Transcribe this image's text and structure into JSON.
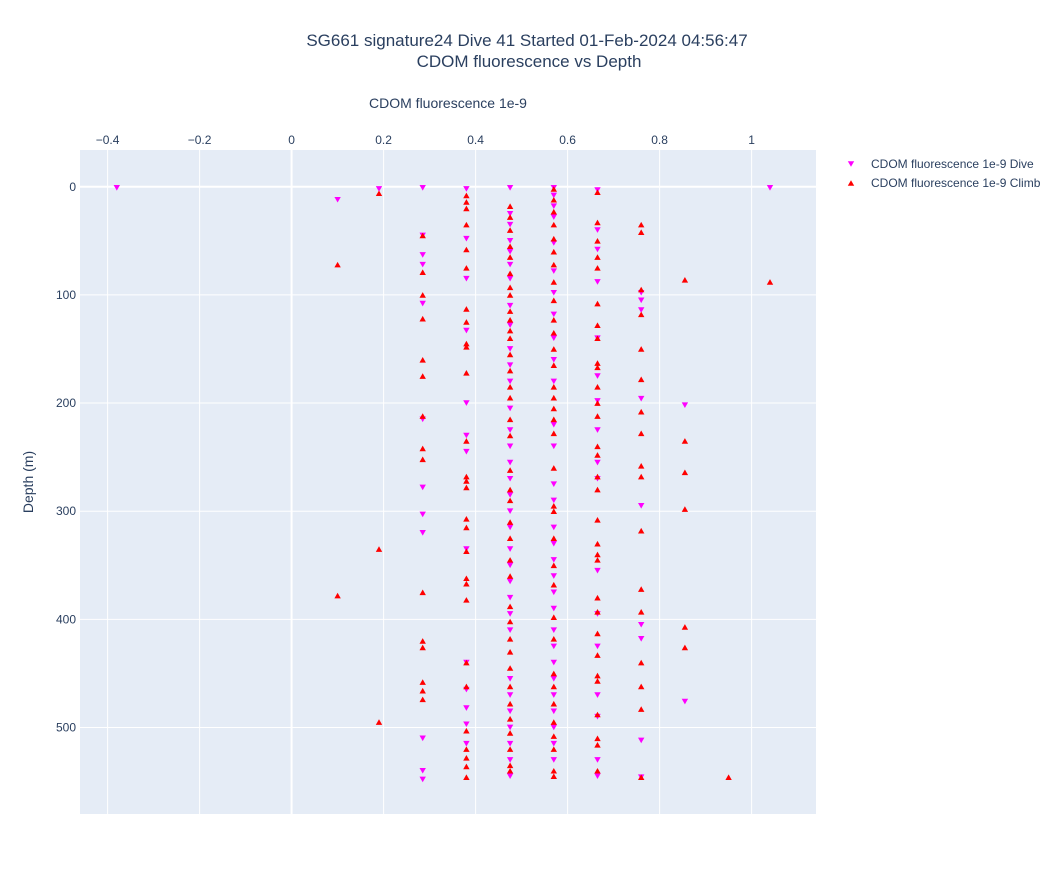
{
  "chart_data": {
    "type": "scatter",
    "title": "SG661 signature24 Dive 41 Started 01-Feb-2024 04:56:47",
    "subtitle": "CDOM fluorescence vs Depth",
    "xlabel": "CDOM fluorescence 1e-9",
    "ylabel": "Depth (m)",
    "xlim": [
      -0.46,
      1.14
    ],
    "ylim": [
      -34,
      580
    ],
    "y_reversed": true,
    "x_axis_position": "top",
    "x_ticks": [
      -0.4,
      -0.2,
      0,
      0.2,
      0.4,
      0.6,
      0.8,
      1
    ],
    "x_tick_labels": [
      "−0.4",
      "−0.2",
      "0",
      "0.2",
      "0.4",
      "0.6",
      "0.8",
      "1"
    ],
    "y_ticks": [
      0,
      100,
      200,
      300,
      400,
      500
    ],
    "y_tick_labels": [
      "0",
      "100",
      "200",
      "300",
      "400",
      "500"
    ],
    "grid": true,
    "legend_position": "top-right",
    "series": [
      {
        "name": "CDOM fluorescence 1e-9 Dive",
        "color": "#ff00ff",
        "marker": "triangle-down",
        "points": [
          [
            -0.38,
            1
          ],
          [
            1.04,
            1
          ],
          [
            0.1,
            12
          ],
          [
            0.19,
            2
          ],
          [
            0.285,
            1
          ],
          [
            0.38,
            2
          ],
          [
            0.475,
            1
          ],
          [
            0.57,
            1
          ],
          [
            0.57,
            8
          ],
          [
            0.57,
            18
          ],
          [
            0.665,
            3
          ],
          [
            0.665,
            40
          ],
          [
            0.285,
            45
          ],
          [
            0.38,
            48
          ],
          [
            0.285,
            63
          ],
          [
            0.285,
            72
          ],
          [
            0.38,
            85
          ],
          [
            0.475,
            25
          ],
          [
            0.475,
            35
          ],
          [
            0.475,
            50
          ],
          [
            0.475,
            60
          ],
          [
            0.475,
            72
          ],
          [
            0.475,
            85
          ],
          [
            0.57,
            28
          ],
          [
            0.57,
            52
          ],
          [
            0.57,
            78
          ],
          [
            0.57,
            98
          ],
          [
            0.57,
            118
          ],
          [
            0.665,
            58
          ],
          [
            0.665,
            88
          ],
          [
            0.76,
            98
          ],
          [
            0.76,
            105
          ],
          [
            0.76,
            114
          ],
          [
            0.285,
            108
          ],
          [
            0.38,
            133
          ],
          [
            0.475,
            110
          ],
          [
            0.475,
            128
          ],
          [
            0.475,
            150
          ],
          [
            0.475,
            165
          ],
          [
            0.475,
            180
          ],
          [
            0.57,
            140
          ],
          [
            0.57,
            160
          ],
          [
            0.57,
            180
          ],
          [
            0.665,
            140
          ],
          [
            0.665,
            175
          ],
          [
            0.38,
            200
          ],
          [
            0.76,
            196
          ],
          [
            0.855,
            202
          ],
          [
            0.475,
            205
          ],
          [
            0.475,
            225
          ],
          [
            0.475,
            240
          ],
          [
            0.475,
            255
          ],
          [
            0.57,
            220
          ],
          [
            0.57,
            240
          ],
          [
            0.665,
            198
          ],
          [
            0.665,
            225
          ],
          [
            0.665,
            255
          ],
          [
            0.285,
            215
          ],
          [
            0.38,
            230
          ],
          [
            0.38,
            245
          ],
          [
            0.475,
            270
          ],
          [
            0.475,
            285
          ],
          [
            0.475,
            300
          ],
          [
            0.57,
            275
          ],
          [
            0.57,
            290
          ],
          [
            0.285,
            278
          ],
          [
            0.285,
            303
          ],
          [
            0.285,
            320
          ],
          [
            0.38,
            335
          ],
          [
            0.665,
            270
          ],
          [
            0.76,
            295
          ],
          [
            0.475,
            315
          ],
          [
            0.475,
            335
          ],
          [
            0.475,
            350
          ],
          [
            0.475,
            365
          ],
          [
            0.57,
            315
          ],
          [
            0.57,
            330
          ],
          [
            0.57,
            345
          ],
          [
            0.57,
            360
          ],
          [
            0.57,
            375
          ],
          [
            0.665,
            355
          ],
          [
            0.475,
            380
          ],
          [
            0.475,
            395
          ],
          [
            0.475,
            410
          ],
          [
            0.57,
            390
          ],
          [
            0.57,
            410
          ],
          [
            0.57,
            425
          ],
          [
            0.57,
            440
          ],
          [
            0.665,
            395
          ],
          [
            0.665,
            425
          ],
          [
            0.76,
            405
          ],
          [
            0.76,
            418
          ],
          [
            0.38,
            440
          ],
          [
            0.38,
            465
          ],
          [
            0.38,
            482
          ],
          [
            0.38,
            497
          ],
          [
            0.38,
            515
          ],
          [
            0.475,
            455
          ],
          [
            0.475,
            470
          ],
          [
            0.475,
            485
          ],
          [
            0.475,
            500
          ],
          [
            0.475,
            515
          ],
          [
            0.475,
            530
          ],
          [
            0.475,
            545
          ],
          [
            0.57,
            455
          ],
          [
            0.57,
            470
          ],
          [
            0.57,
            485
          ],
          [
            0.57,
            500
          ],
          [
            0.57,
            515
          ],
          [
            0.57,
            530
          ],
          [
            0.665,
            470
          ],
          [
            0.665,
            490
          ],
          [
            0.855,
            476
          ],
          [
            0.76,
            512
          ],
          [
            0.76,
            546
          ],
          [
            0.285,
            510
          ],
          [
            0.285,
            540
          ],
          [
            0.285,
            548
          ],
          [
            0.665,
            530
          ],
          [
            0.665,
            545
          ]
        ]
      },
      {
        "name": "CDOM fluorescence 1e-9 Climb",
        "color": "#ff0000",
        "marker": "triangle-up",
        "points": [
          [
            0.1,
            72
          ],
          [
            0.19,
            6
          ],
          [
            0.19,
            335
          ],
          [
            0.1,
            378
          ],
          [
            0.19,
            495
          ],
          [
            0.95,
            546
          ],
          [
            1.04,
            88
          ],
          [
            0.855,
            86
          ],
          [
            0.855,
            235
          ],
          [
            0.855,
            264
          ],
          [
            0.855,
            298
          ],
          [
            0.855,
            407
          ],
          [
            0.855,
            426
          ],
          [
            0.285,
            45
          ],
          [
            0.285,
            79
          ],
          [
            0.285,
            100
          ],
          [
            0.285,
            122
          ],
          [
            0.285,
            160
          ],
          [
            0.285,
            175
          ],
          [
            0.285,
            212
          ],
          [
            0.285,
            242
          ],
          [
            0.285,
            252
          ],
          [
            0.285,
            375
          ],
          [
            0.285,
            420
          ],
          [
            0.285,
            426
          ],
          [
            0.285,
            458
          ],
          [
            0.285,
            466
          ],
          [
            0.285,
            474
          ],
          [
            0.38,
            8
          ],
          [
            0.38,
            14
          ],
          [
            0.38,
            20
          ],
          [
            0.38,
            35
          ],
          [
            0.38,
            58
          ],
          [
            0.38,
            75
          ],
          [
            0.38,
            113
          ],
          [
            0.38,
            125
          ],
          [
            0.38,
            145
          ],
          [
            0.38,
            148
          ],
          [
            0.38,
            172
          ],
          [
            0.38,
            235
          ],
          [
            0.38,
            268
          ],
          [
            0.38,
            272
          ],
          [
            0.38,
            278
          ],
          [
            0.38,
            307
          ],
          [
            0.38,
            315
          ],
          [
            0.38,
            337
          ],
          [
            0.38,
            362
          ],
          [
            0.38,
            367
          ],
          [
            0.38,
            382
          ],
          [
            0.38,
            440
          ],
          [
            0.38,
            462
          ],
          [
            0.38,
            503
          ],
          [
            0.38,
            520
          ],
          [
            0.38,
            528
          ],
          [
            0.38,
            536
          ],
          [
            0.38,
            546
          ],
          [
            0.475,
            18
          ],
          [
            0.475,
            28
          ],
          [
            0.475,
            40
          ],
          [
            0.475,
            55
          ],
          [
            0.475,
            65
          ],
          [
            0.475,
            80
          ],
          [
            0.475,
            93
          ],
          [
            0.475,
            100
          ],
          [
            0.475,
            115
          ],
          [
            0.475,
            123
          ],
          [
            0.475,
            133
          ],
          [
            0.475,
            140
          ],
          [
            0.475,
            155
          ],
          [
            0.475,
            170
          ],
          [
            0.475,
            185
          ],
          [
            0.475,
            195
          ],
          [
            0.475,
            215
          ],
          [
            0.475,
            230
          ],
          [
            0.475,
            262
          ],
          [
            0.475,
            280
          ],
          [
            0.475,
            290
          ],
          [
            0.475,
            310
          ],
          [
            0.475,
            325
          ],
          [
            0.475,
            345
          ],
          [
            0.475,
            360
          ],
          [
            0.475,
            388
          ],
          [
            0.475,
            402
          ],
          [
            0.475,
            418
          ],
          [
            0.475,
            430
          ],
          [
            0.475,
            445
          ],
          [
            0.475,
            462
          ],
          [
            0.475,
            478
          ],
          [
            0.475,
            492
          ],
          [
            0.475,
            505
          ],
          [
            0.475,
            520
          ],
          [
            0.475,
            535
          ],
          [
            0.475,
            540
          ],
          [
            0.57,
            2
          ],
          [
            0.57,
            12
          ],
          [
            0.57,
            23
          ],
          [
            0.57,
            35
          ],
          [
            0.57,
            48
          ],
          [
            0.57,
            60
          ],
          [
            0.57,
            72
          ],
          [
            0.57,
            88
          ],
          [
            0.57,
            105
          ],
          [
            0.57,
            123
          ],
          [
            0.57,
            135
          ],
          [
            0.57,
            150
          ],
          [
            0.57,
            165
          ],
          [
            0.57,
            185
          ],
          [
            0.57,
            195
          ],
          [
            0.57,
            205
          ],
          [
            0.57,
            215
          ],
          [
            0.57,
            228
          ],
          [
            0.57,
            260
          ],
          [
            0.57,
            295
          ],
          [
            0.57,
            300
          ],
          [
            0.57,
            325
          ],
          [
            0.57,
            350
          ],
          [
            0.57,
            368
          ],
          [
            0.57,
            398
          ],
          [
            0.57,
            418
          ],
          [
            0.57,
            450
          ],
          [
            0.57,
            462
          ],
          [
            0.57,
            478
          ],
          [
            0.57,
            495
          ],
          [
            0.57,
            508
          ],
          [
            0.57,
            520
          ],
          [
            0.57,
            540
          ],
          [
            0.57,
            545
          ],
          [
            0.665,
            5
          ],
          [
            0.665,
            33
          ],
          [
            0.665,
            50
          ],
          [
            0.665,
            65
          ],
          [
            0.665,
            75
          ],
          [
            0.665,
            108
          ],
          [
            0.665,
            128
          ],
          [
            0.665,
            140
          ],
          [
            0.665,
            163
          ],
          [
            0.665,
            167
          ],
          [
            0.665,
            185
          ],
          [
            0.665,
            200
          ],
          [
            0.665,
            212
          ],
          [
            0.665,
            240
          ],
          [
            0.665,
            248
          ],
          [
            0.665,
            268
          ],
          [
            0.665,
            280
          ],
          [
            0.665,
            308
          ],
          [
            0.665,
            330
          ],
          [
            0.665,
            340
          ],
          [
            0.665,
            345
          ],
          [
            0.665,
            380
          ],
          [
            0.665,
            393
          ],
          [
            0.665,
            413
          ],
          [
            0.665,
            433
          ],
          [
            0.665,
            452
          ],
          [
            0.665,
            457
          ],
          [
            0.665,
            488
          ],
          [
            0.665,
            510
          ],
          [
            0.665,
            516
          ],
          [
            0.665,
            540
          ],
          [
            0.76,
            35
          ],
          [
            0.76,
            42
          ],
          [
            0.76,
            95
          ],
          [
            0.76,
            118
          ],
          [
            0.76,
            150
          ],
          [
            0.76,
            178
          ],
          [
            0.76,
            208
          ],
          [
            0.76,
            228
          ],
          [
            0.76,
            258
          ],
          [
            0.76,
            268
          ],
          [
            0.76,
            318
          ],
          [
            0.76,
            372
          ],
          [
            0.76,
            393
          ],
          [
            0.76,
            440
          ],
          [
            0.76,
            462
          ],
          [
            0.76,
            483
          ],
          [
            0.76,
            546
          ]
        ]
      }
    ]
  }
}
